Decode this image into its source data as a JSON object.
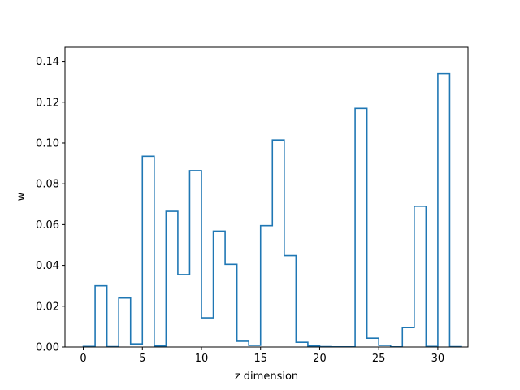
{
  "chart_data": {
    "type": "bar",
    "style": "step-outline",
    "title": "",
    "xlabel": "z dimension",
    "ylabel": "w",
    "xlim": [
      -1.55,
      32.55
    ],
    "ylim": [
      0,
      0.147
    ],
    "xticks": [
      0,
      5,
      10,
      15,
      20,
      25,
      30
    ],
    "yticks": [
      0.0,
      0.02,
      0.04,
      0.06,
      0.08,
      0.1,
      0.12,
      0.14
    ],
    "ytick_labels": [
      "0.00",
      "0.02",
      "0.04",
      "0.06",
      "0.08",
      "0.10",
      "0.12",
      "0.14"
    ],
    "grid": false,
    "line_color": "#1f77b4",
    "bins": [
      {
        "x": 0,
        "w": 0.0003
      },
      {
        "x": 1,
        "w": 0.03
      },
      {
        "x": 2,
        "w": 0.0002
      },
      {
        "x": 3,
        "w": 0.024
      },
      {
        "x": 4,
        "w": 0.0015
      },
      {
        "x": 5,
        "w": 0.0935
      },
      {
        "x": 6,
        "w": 0.0005
      },
      {
        "x": 7,
        "w": 0.0665
      },
      {
        "x": 8,
        "w": 0.0355
      },
      {
        "x": 9,
        "w": 0.0865
      },
      {
        "x": 10,
        "w": 0.0143
      },
      {
        "x": 11,
        "w": 0.0568
      },
      {
        "x": 12,
        "w": 0.0405
      },
      {
        "x": 13,
        "w": 0.0028
      },
      {
        "x": 14,
        "w": 0.0008
      },
      {
        "x": 15,
        "w": 0.0595
      },
      {
        "x": 16,
        "w": 0.1015
      },
      {
        "x": 17,
        "w": 0.0448
      },
      {
        "x": 18,
        "w": 0.0023
      },
      {
        "x": 19,
        "w": 0.0005
      },
      {
        "x": 20,
        "w": 0.0002
      },
      {
        "x": 21,
        "w": 0.0001
      },
      {
        "x": 22,
        "w": 0.0001
      },
      {
        "x": 23,
        "w": 0.117
      },
      {
        "x": 24,
        "w": 0.0043
      },
      {
        "x": 25,
        "w": 0.0008
      },
      {
        "x": 26,
        "w": 0.0001
      },
      {
        "x": 27,
        "w": 0.0095
      },
      {
        "x": 28,
        "w": 0.069
      },
      {
        "x": 29,
        "w": 0.0003
      },
      {
        "x": 30,
        "w": 0.134
      },
      {
        "x": 31,
        "w": 0.0002
      }
    ]
  }
}
